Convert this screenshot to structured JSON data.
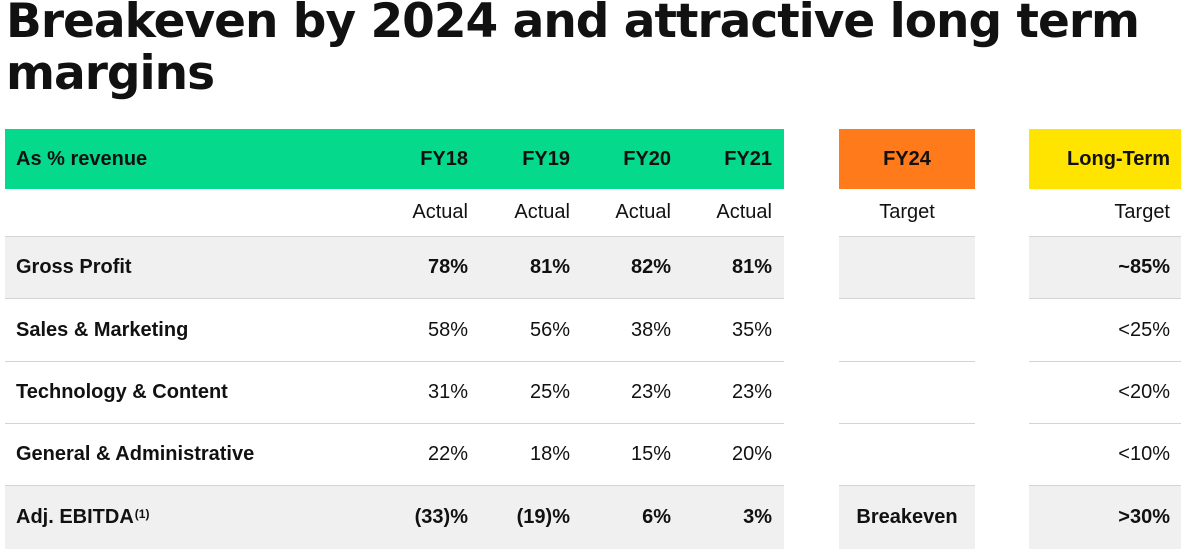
{
  "title": "Breakeven by 2024 and attractive long term margins",
  "header": {
    "label": "As % revenue",
    "fy18": "FY18",
    "fy19": "FY19",
    "fy20": "FY20",
    "fy21": "FY21",
    "fy24": "FY24",
    "long_term": "Long-Term"
  },
  "subheader": {
    "fy18": "Actual",
    "fy19": "Actual",
    "fy20": "Actual",
    "fy21": "Actual",
    "fy24": "Target",
    "long_term": "Target"
  },
  "rows": [
    {
      "label": "Gross Profit",
      "fy18": "78%",
      "fy19": "81%",
      "fy20": "82%",
      "fy21": "81%",
      "fy24": "",
      "long_term": "~85%"
    },
    {
      "label": "Sales & Marketing",
      "fy18": "58%",
      "fy19": "56%",
      "fy20": "38%",
      "fy21": "35%",
      "fy24": "",
      "long_term": "<25%"
    },
    {
      "label": "Technology & Content",
      "fy18": "31%",
      "fy19": "25%",
      "fy20": "23%",
      "fy21": "23%",
      "fy24": "",
      "long_term": "<20%"
    },
    {
      "label": "General & Administrative",
      "fy18": "22%",
      "fy19": "18%",
      "fy20": "15%",
      "fy21": "20%",
      "fy24": "",
      "long_term": "<10%"
    },
    {
      "label": "Adj. EBITDA",
      "footnote": "(1)",
      "fy18": "(33)%",
      "fy19": "(19)%",
      "fy20": "6%",
      "fy21": "3%",
      "fy24": "Breakeven",
      "long_term": ">30%"
    }
  ],
  "colors": {
    "header_green": "#05d98c",
    "fy24_orange": "#ff7a1a",
    "long_term_yellow": "#ffe400",
    "row_shade": "#f0f0f0",
    "rule": "#d4d4d4"
  }
}
